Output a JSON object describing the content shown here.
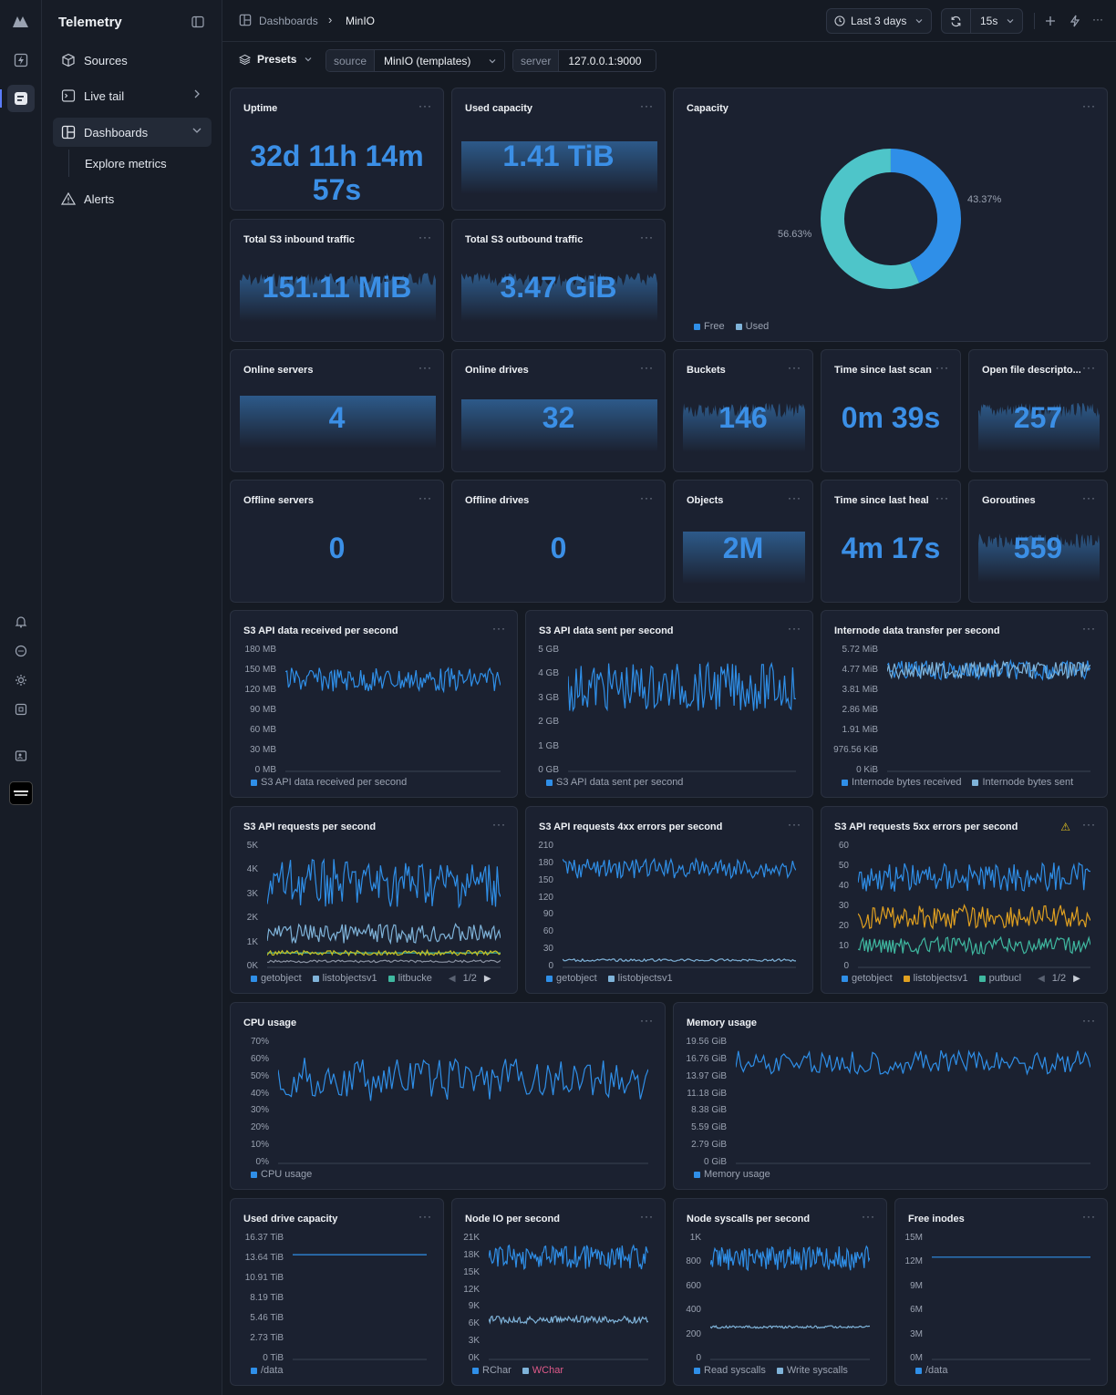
{
  "app": {
    "title": "Telemetry"
  },
  "nav": {
    "sources": "Sources",
    "live_tail": "Live tail",
    "dashboards": "Dashboards",
    "explore": "Explore metrics",
    "alerts": "Alerts"
  },
  "breadcrumb": {
    "root": "Dashboards",
    "current": "MinIO"
  },
  "toolbar": {
    "range": "Last 3 days",
    "refresh": "15s"
  },
  "filters": {
    "presets": "Presets",
    "source_key": "source",
    "source_val": "MinIO (templates)",
    "server_key": "server",
    "server_val": "127.0.0.1:9000"
  },
  "stats": {
    "uptime": {
      "title": "Uptime",
      "value": "32d 11h 14m 57s"
    },
    "used_capacity": {
      "title": "Used capacity",
      "value": "1.41 TiB"
    },
    "inbound": {
      "title": "Total S3 inbound traffic",
      "value": "151.11 MiB"
    },
    "outbound": {
      "title": "Total S3 outbound traffic",
      "value": "3.47 GiB"
    },
    "online_servers": {
      "title": "Online servers",
      "value": "4"
    },
    "online_drives": {
      "title": "Online drives",
      "value": "32"
    },
    "buckets": {
      "title": "Buckets",
      "value": "146"
    },
    "last_scan": {
      "title": "Time since last scan",
      "value": "0m 39s"
    },
    "open_fd": {
      "title": "Open file descripto...",
      "value": "257"
    },
    "offline_servers": {
      "title": "Offline servers",
      "value": "0"
    },
    "offline_drives": {
      "title": "Offline drives",
      "value": "0"
    },
    "objects": {
      "title": "Objects",
      "value": "2M"
    },
    "last_heal": {
      "title": "Time since last heal",
      "value": "4m 17s"
    },
    "goroutines": {
      "title": "Goroutines",
      "value": "559"
    }
  },
  "capacity": {
    "title": "Capacity",
    "free_pct": "56.63%",
    "used_pct": "43.37%",
    "free_label": "Free",
    "used_label": "Used",
    "free_color": "#4ec5c9",
    "used_color": "#2f8fe8"
  },
  "charts": {
    "s3_received": {
      "title": "S3 API data received per second",
      "ticks": [
        "180 MB",
        "150 MB",
        "120 MB",
        "90 MB",
        "60 MB",
        "30 MB",
        "0 MB"
      ],
      "legend": [
        "S3 API data received per second"
      ]
    },
    "s3_sent": {
      "title": "S3 API data sent per second",
      "ticks": [
        "5 GB",
        "4 GB",
        "3 GB",
        "2 GB",
        "1 GB",
        "0 GB"
      ],
      "legend": [
        "S3 API data sent per second"
      ]
    },
    "internode": {
      "title": "Internode data transfer per second",
      "ticks": [
        "5.72 MiB",
        "4.77 MiB",
        "3.81 MiB",
        "2.86 MiB",
        "1.91 MiB",
        "976.56 KiB",
        "0 KiB"
      ],
      "legend": [
        "Internode bytes received",
        "Internode bytes sent"
      ]
    },
    "s3_requests": {
      "title": "S3 API requests per second",
      "ticks": [
        "5K",
        "4K",
        "3K",
        "2K",
        "1K",
        "0K"
      ],
      "legend": [
        "getobject",
        "listobjectsv1",
        "litbucke"
      ],
      "page": "1/2"
    },
    "s3_4xx": {
      "title": "S3 API requests 4xx errors per second",
      "ticks": [
        "210",
        "180",
        "150",
        "120",
        "90",
        "60",
        "30",
        "0"
      ],
      "legend": [
        "getobject",
        "listobjectsv1"
      ]
    },
    "s3_5xx": {
      "title": "S3 API requests 5xx errors per second",
      "ticks": [
        "60",
        "50",
        "40",
        "30",
        "20",
        "10",
        "0"
      ],
      "legend": [
        "getobject",
        "listobjectsv1",
        "putbucl"
      ],
      "page": "1/2"
    },
    "cpu": {
      "title": "CPU usage",
      "ticks": [
        "70%",
        "60%",
        "50%",
        "40%",
        "30%",
        "20%",
        "10%",
        "0%"
      ],
      "legend": [
        "CPU usage"
      ]
    },
    "memory": {
      "title": "Memory usage",
      "ticks": [
        "19.56 GiB",
        "16.76 GiB",
        "13.97 GiB",
        "11.18 GiB",
        "8.38 GiB",
        "5.59 GiB",
        "2.79 GiB",
        "0 GiB"
      ],
      "legend": [
        "Memory usage"
      ]
    },
    "drive_cap": {
      "title": "Used drive capacity",
      "ticks": [
        "16.37 TiB",
        "13.64 TiB",
        "10.91 TiB",
        "8.19 TiB",
        "5.46 TiB",
        "2.73 TiB",
        "0 TiB"
      ],
      "legend": [
        "/data"
      ]
    },
    "node_io": {
      "title": "Node IO per second",
      "ticks": [
        "21K",
        "18K",
        "15K",
        "12K",
        "9K",
        "6K",
        "3K",
        "0K"
      ],
      "legend": [
        "RChar",
        "WChar"
      ]
    },
    "syscalls": {
      "title": "Node syscalls per second",
      "ticks": [
        "1K",
        "800",
        "600",
        "400",
        "200",
        "0"
      ],
      "legend": [
        "Read syscalls",
        "Write syscalls"
      ]
    },
    "inodes": {
      "title": "Free inodes",
      "ticks": [
        "15M",
        "12M",
        "9M",
        "6M",
        "3M",
        "0M"
      ],
      "legend": [
        "/data"
      ]
    }
  }
}
